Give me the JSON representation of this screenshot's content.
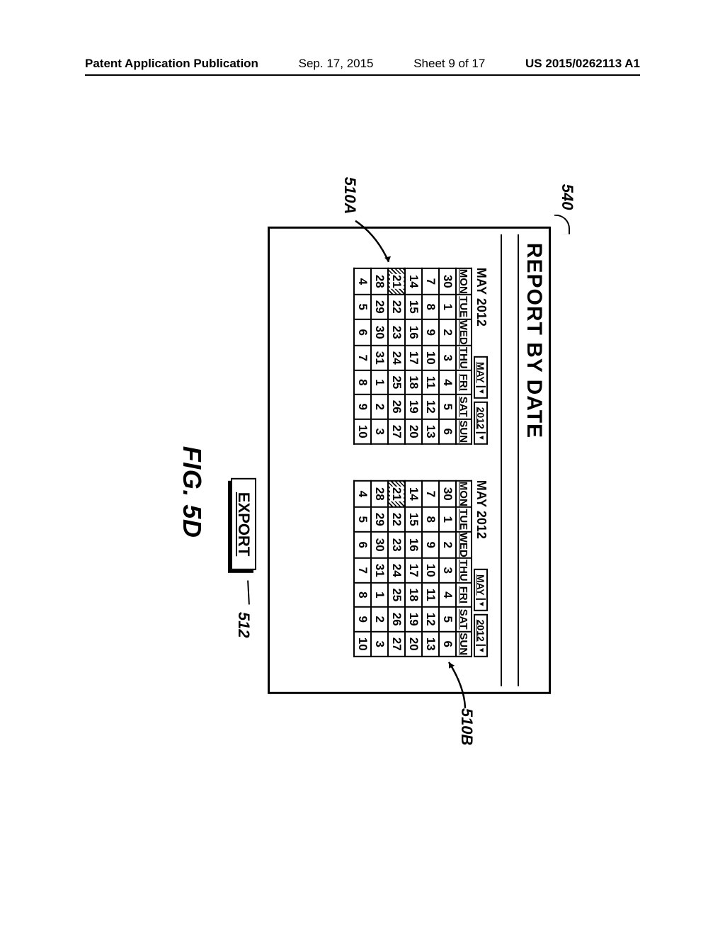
{
  "header": {
    "publication": "Patent Application Publication",
    "date": "Sep. 17, 2015",
    "sheet": "Sheet 9 of 17",
    "pubnum": "US 2015/0262113 A1"
  },
  "figure": {
    "label": "FIG. 5D",
    "ref540": "540",
    "ref510A": "510A",
    "ref510B": "510B",
    "ref512": "512",
    "panelTitle": "REPORT BY DATE",
    "exportLabel": "EXPORT"
  },
  "calendar": {
    "monthYear": "MAY 2012",
    "monthDD": "MAY",
    "yearDD": "2012",
    "daysShort": [
      "MON",
      "TUE",
      "WED",
      "THU",
      "FRI",
      "SAT",
      "SUN"
    ],
    "weeks": [
      [
        "30",
        "1",
        "2",
        "3",
        "4",
        "5",
        "6"
      ],
      [
        "7",
        "8",
        "9",
        "10",
        "11",
        "12",
        "13"
      ],
      [
        "14",
        "15",
        "16",
        "17",
        "18",
        "19",
        "20"
      ],
      [
        "21",
        "22",
        "23",
        "24",
        "25",
        "26",
        "27"
      ],
      [
        "28",
        "29",
        "30",
        "31",
        "1",
        "2",
        "3"
      ],
      [
        "4",
        "5",
        "6",
        "7",
        "8",
        "9",
        "10"
      ]
    ],
    "selectedA": "21",
    "selectedB": "21"
  }
}
